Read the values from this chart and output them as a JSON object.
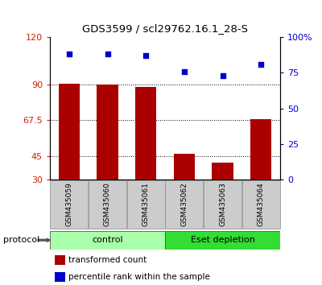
{
  "title": "GDS3599 / scl29762.16.1_28-S",
  "samples": [
    "GSM435059",
    "GSM435060",
    "GSM435061",
    "GSM435062",
    "GSM435063",
    "GSM435064"
  ],
  "bar_values": [
    90.5,
    90.2,
    88.5,
    46.5,
    40.5,
    68.0
  ],
  "dot_values": [
    88,
    88,
    87,
    76,
    73,
    81
  ],
  "ylim_left": [
    30,
    120
  ],
  "ylim_right": [
    0,
    100
  ],
  "yticks_left": [
    30,
    45,
    67.5,
    90,
    120
  ],
  "yticks_right": [
    0,
    25,
    50,
    75,
    100
  ],
  "ytick_labels_left": [
    "30",
    "45",
    "67.5",
    "90",
    "120"
  ],
  "ytick_labels_right": [
    "0",
    "25",
    "50",
    "75",
    "100%"
  ],
  "hlines": [
    45,
    67.5,
    90
  ],
  "bar_color": "#aa0000",
  "dot_color": "#0000cc",
  "control_color": "#aaffaa",
  "eset_color": "#33dd33",
  "sample_box_color": "#cccccc",
  "protocol_label": "protocol",
  "control_label": "control",
  "eset_label": "Eset depletion",
  "legend_bar_label": "transformed count",
  "legend_dot_label": "percentile rank within the sample",
  "tick_label_color_left": "#cc2200",
  "tick_label_color_right": "#0000cc"
}
